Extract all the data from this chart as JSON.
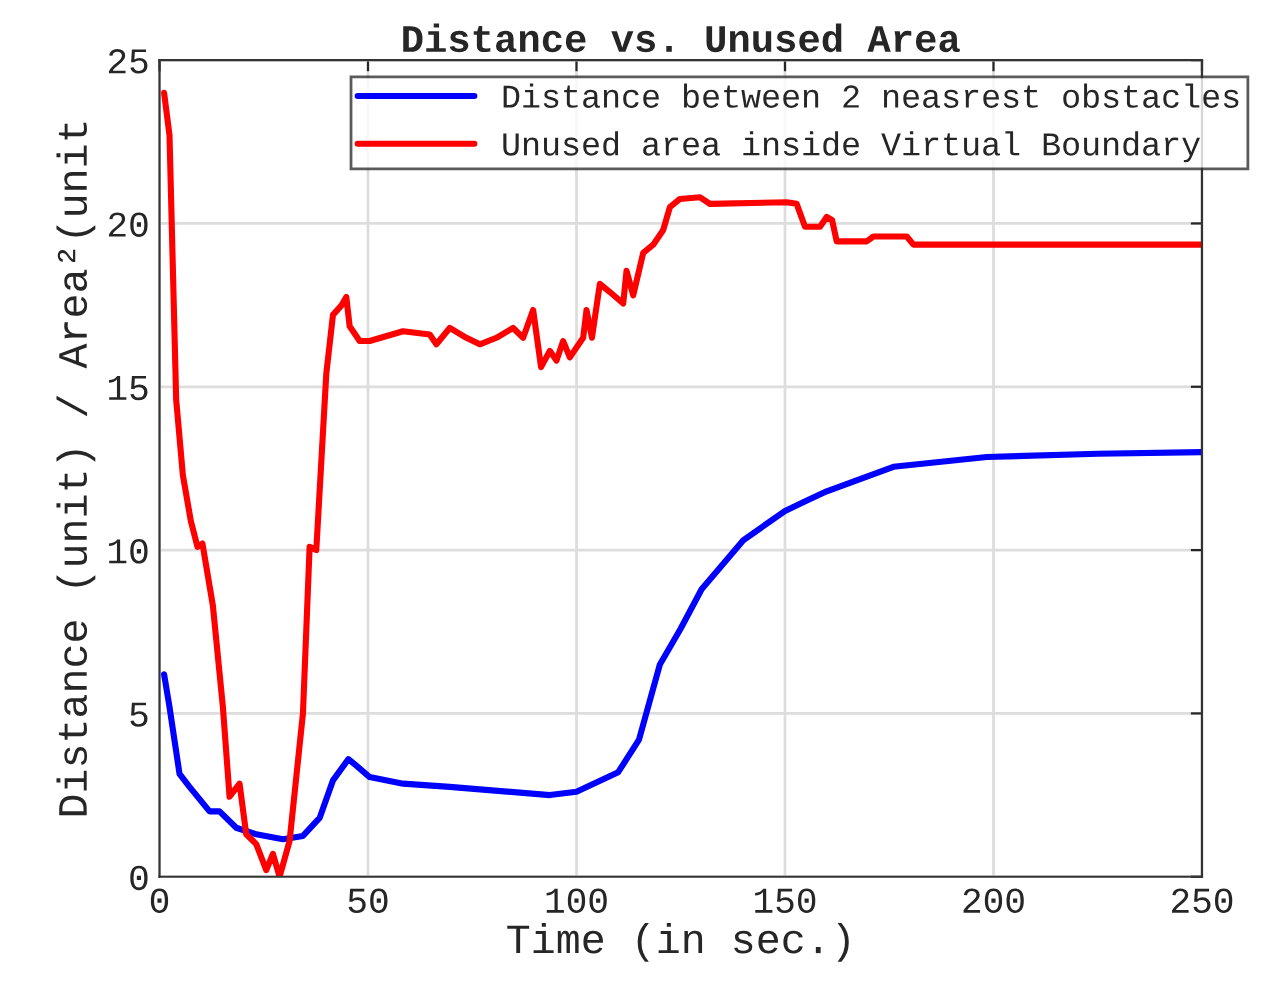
{
  "chart_data": {
    "type": "line",
    "title": "Distance vs. Unused Area",
    "xlabel": "Time (in sec.)",
    "ylabel": "Distance (unit) / Area²(unit",
    "xlim": [
      0,
      250
    ],
    "xticks": [
      0,
      50,
      100,
      150,
      200,
      250
    ],
    "ylim": [
      0,
      25
    ],
    "yticks": [
      0,
      5,
      10,
      15,
      20,
      25
    ],
    "grid": true,
    "legend": "top right",
    "line_style": "solid",
    "marker": "none",
    "series": [
      {
        "name": "Distance between 2 neasrest obstacles",
        "color": "#0000ff",
        "x": [
          1.1,
          2.4,
          4.8,
          7.2,
          12,
          14.4,
          18.4,
          23.2,
          29.6,
          34.4,
          38.4,
          41.6,
          45.3,
          47.2,
          50.4,
          58.4,
          69.6,
          93.6,
          100,
          110,
          115,
          120,
          125,
          130,
          140,
          150,
          155,
          160,
          176,
          198.4,
          225,
          250
        ],
        "values": [
          6.2,
          5.2,
          3.15,
          2.75,
          2.0,
          2.0,
          1.5,
          1.3,
          1.15,
          1.25,
          1.8,
          2.95,
          3.6,
          3.4,
          3.05,
          2.85,
          2.75,
          2.5,
          2.6,
          3.2,
          4.2,
          6.5,
          7.6,
          8.8,
          10.3,
          11.2,
          11.5,
          11.8,
          12.55,
          12.85,
          12.95,
          13.0
        ]
      },
      {
        "name": "Unused area inside Virtual Boundary",
        "color": "#ff0000",
        "x": [
          1.1,
          2.4,
          4,
          5.6,
          7.5,
          9.1,
          10.3,
          12.8,
          15.2,
          16.8,
          19.2,
          20.8,
          23.2,
          25.6,
          27.2,
          28.8,
          31.2,
          34.4,
          36,
          37.6,
          40,
          41.6,
          43.7,
          44.8,
          45.6,
          48,
          50.4,
          58.4,
          64.8,
          66.4,
          69.6,
          73.6,
          76.8,
          80.8,
          84.8,
          87.2,
          89.6,
          91.5,
          93.6,
          95.2,
          96.8,
          98.4,
          101.6,
          102.4,
          103.7,
          105.6,
          108,
          111.2,
          112,
          113.6,
          116,
          118.4,
          120.8,
          122.4,
          124.8,
          129.6,
          132,
          150.4,
          152.8,
          154.8,
          158.4,
          160,
          161.3,
          162.4,
          169.6,
          171.2,
          179.2,
          180.8,
          250
        ],
        "values": [
          24.0,
          22.7,
          14.6,
          12.3,
          10.9,
          10.1,
          10.2,
          8.3,
          5.2,
          2.45,
          2.85,
          1.3,
          1.0,
          0.2,
          0.7,
          0,
          1.1,
          5.0,
          10.1,
          10.0,
          15.4,
          17.2,
          17.5,
          17.75,
          16.85,
          16.4,
          16.4,
          16.7,
          16.6,
          16.3,
          16.8,
          16.5,
          16.3,
          16.5,
          16.8,
          16.5,
          17.35,
          15.6,
          16.1,
          15.8,
          16.4,
          15.9,
          16.5,
          17.35,
          16.5,
          18.15,
          17.9,
          17.55,
          18.55,
          17.8,
          19.1,
          19.35,
          19.8,
          20.5,
          20.75,
          20.8,
          20.6,
          20.65,
          20.6,
          19.9,
          19.9,
          20.2,
          20.1,
          19.45,
          19.45,
          19.6,
          19.6,
          19.35,
          19.35
        ]
      }
    ]
  }
}
